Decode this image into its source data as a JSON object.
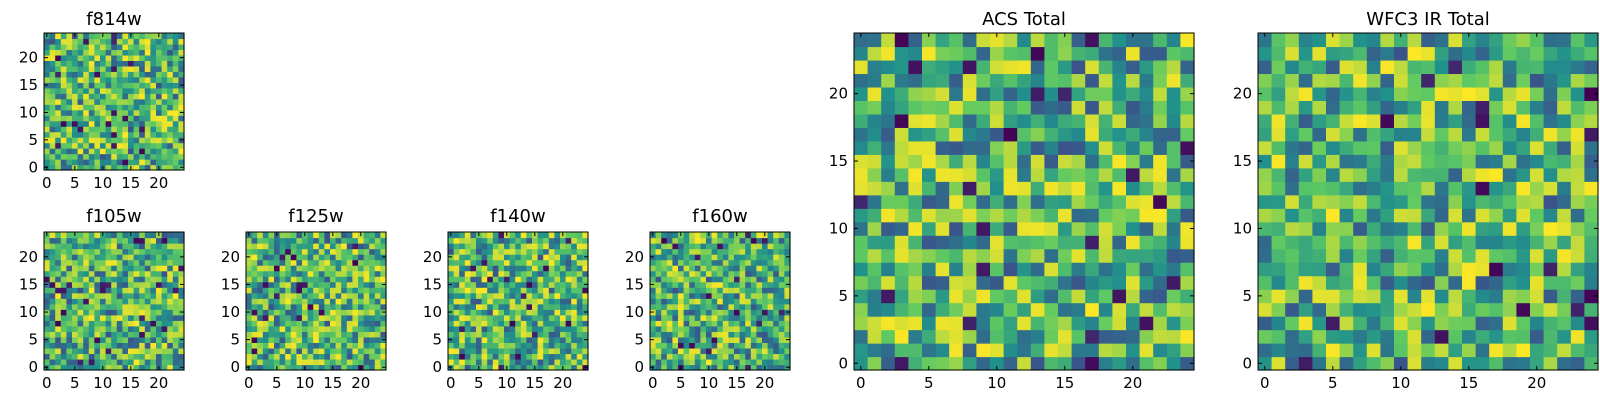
{
  "figure": {
    "colormap": [
      "#440154",
      "#3b528b",
      "#21918c",
      "#5ec962",
      "#fde725"
    ]
  },
  "chart_data": [
    {
      "id": "f814w",
      "type": "heatmap",
      "title": "f814w",
      "grid_size": 25,
      "xlim": [
        0,
        24
      ],
      "ylim": [
        0,
        24
      ],
      "xticks": [
        0,
        5,
        10,
        15,
        20
      ],
      "yticks": [
        0,
        5,
        10,
        15,
        20
      ],
      "seed": 11,
      "xlabel": "",
      "ylabel": ""
    },
    {
      "id": "f105w",
      "type": "heatmap",
      "title": "f105w",
      "grid_size": 25,
      "xlim": [
        0,
        24
      ],
      "ylim": [
        0,
        24
      ],
      "xticks": [
        0,
        5,
        10,
        15,
        20
      ],
      "yticks": [
        0,
        5,
        10,
        15,
        20
      ],
      "seed": 23,
      "xlabel": "",
      "ylabel": ""
    },
    {
      "id": "f125w",
      "type": "heatmap",
      "title": "f125w",
      "grid_size": 25,
      "xlim": [
        0,
        24
      ],
      "ylim": [
        0,
        24
      ],
      "xticks": [
        0,
        5,
        10,
        15,
        20
      ],
      "yticks": [
        0,
        5,
        10,
        15,
        20
      ],
      "seed": 37,
      "xlabel": "",
      "ylabel": ""
    },
    {
      "id": "f140w",
      "type": "heatmap",
      "title": "f140w",
      "grid_size": 25,
      "xlim": [
        0,
        24
      ],
      "ylim": [
        0,
        24
      ],
      "xticks": [
        0,
        5,
        10,
        15,
        20
      ],
      "yticks": [
        0,
        5,
        10,
        15,
        20
      ],
      "seed": 41,
      "xlabel": "",
      "ylabel": ""
    },
    {
      "id": "f160w",
      "type": "heatmap",
      "title": "f160w",
      "grid_size": 25,
      "xlim": [
        0,
        24
      ],
      "ylim": [
        0,
        24
      ],
      "xticks": [
        0,
        5,
        10,
        15,
        20
      ],
      "yticks": [
        0,
        5,
        10,
        15,
        20
      ],
      "seed": 53,
      "xlabel": "",
      "ylabel": ""
    },
    {
      "id": "acs-total",
      "type": "heatmap",
      "title": "ACS Total",
      "grid_size": 25,
      "xlim": [
        0,
        24
      ],
      "ylim": [
        0,
        24
      ],
      "xticks": [
        0,
        5,
        10,
        15,
        20
      ],
      "yticks": [
        0,
        5,
        10,
        15,
        20
      ],
      "seed": 67,
      "xlabel": "",
      "ylabel": ""
    },
    {
      "id": "wfc3-ir-total",
      "type": "heatmap",
      "title": "WFC3 IR Total",
      "grid_size": 25,
      "xlim": [
        0,
        24
      ],
      "ylim": [
        0,
        24
      ],
      "xticks": [
        0,
        5,
        10,
        15,
        20
      ],
      "yticks": [
        0,
        5,
        10,
        15,
        20
      ],
      "seed": 79,
      "xlabel": "",
      "ylabel": ""
    }
  ]
}
